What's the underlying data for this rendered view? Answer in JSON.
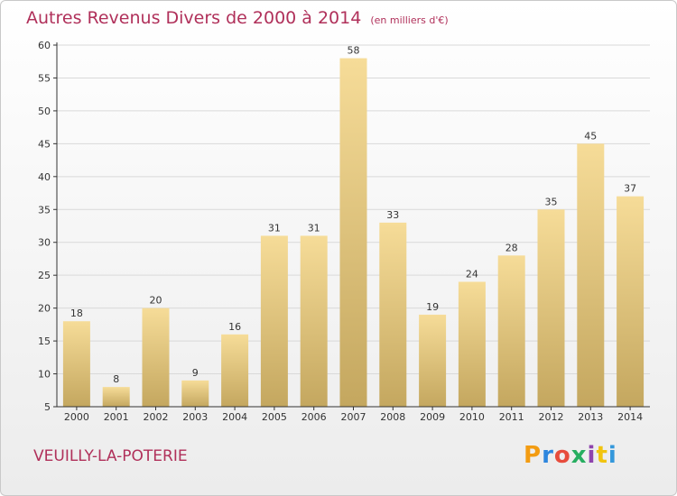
{
  "header": {
    "title": "Autres Revenus Divers de 2000 à 2014",
    "unit": "(en milliers d'€)"
  },
  "footer": {
    "commune": "VEUILLY-LA-POTERIE",
    "brand": "Proxiti",
    "brand_colors": [
      "#f39c12",
      "#2e86de",
      "#e74c3c",
      "#27ae60",
      "#8e44ad",
      "#f1c40f",
      "#3498db"
    ]
  },
  "colors": {
    "title": "#b0305a",
    "bar_top": "#f6dc98",
    "bar_bottom": "#c4a75f",
    "axis": "#333333",
    "grid": "#d9d9d9"
  },
  "chart_data": {
    "type": "bar",
    "categories": [
      "2000",
      "2001",
      "2002",
      "2003",
      "2004",
      "2005",
      "2006",
      "2007",
      "2008",
      "2009",
      "2010",
      "2011",
      "2012",
      "2013",
      "2014"
    ],
    "values": [
      18,
      8,
      20,
      9,
      16,
      31,
      31,
      58,
      33,
      19,
      24,
      28,
      35,
      45,
      37
    ],
    "ylim": [
      5,
      60
    ],
    "yticks": [
      5,
      10,
      15,
      20,
      25,
      30,
      35,
      40,
      45,
      50,
      55,
      60
    ],
    "grid": true,
    "legend": "none"
  }
}
